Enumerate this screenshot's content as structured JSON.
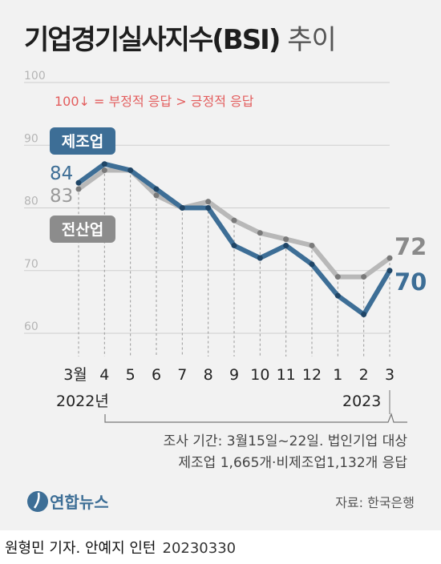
{
  "title": "기업경기실사지수(BSI)",
  "subtitle": "추이",
  "chart_data": {
    "type": "line",
    "categories": [
      "3월",
      "4",
      "5",
      "6",
      "7",
      "8",
      "9",
      "10",
      "11",
      "12",
      "1",
      "2",
      "3"
    ],
    "year_labels": [
      "2022년",
      "2023"
    ],
    "ylim": [
      60,
      100
    ],
    "yticks": [
      100,
      90,
      80,
      70,
      60
    ],
    "note": "100↓ = 부정적 응답 > 긍정적 응답",
    "series": [
      {
        "name": "제조업",
        "color": "#3d6e96",
        "values": [
          84,
          87,
          86,
          83,
          80,
          80,
          74,
          72,
          74,
          71,
          66,
          63,
          70
        ],
        "start_label": "84",
        "end_label": "70"
      },
      {
        "name": "전산업",
        "color": "#b8b8b8",
        "values": [
          83,
          86,
          86,
          82,
          80,
          81,
          78,
          76,
          75,
          74,
          69,
          69,
          72
        ],
        "start_label": "83",
        "end_label": "72"
      }
    ]
  },
  "survey_line1": "조사 기간: 3월15일~22일. 법인기업 대상",
  "survey_line2": "제조업 1,665개·비제조업1,132개 응답",
  "logo_text": "연합뉴스",
  "source": "자료: 한국은행",
  "credit": "원형민 기자. 안예지 인턴",
  "date": "20230330"
}
